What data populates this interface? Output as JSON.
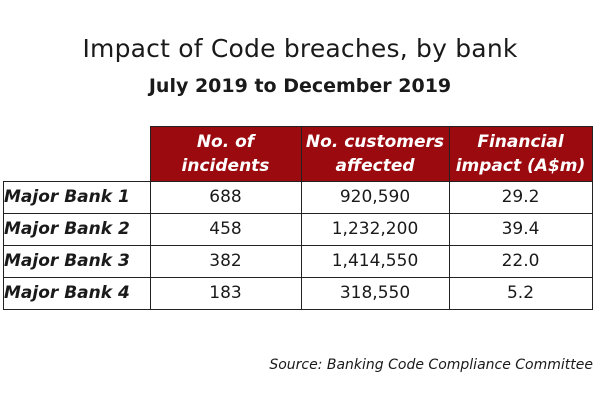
{
  "chart_data": {
    "type": "table",
    "title": "Impact of Code breaches, by bank",
    "subtitle": "July 2019 to December 2019",
    "columns": [
      {
        "line1": "No. of",
        "line2": "incidents"
      },
      {
        "line1": "No. customers",
        "line2": "affected"
      },
      {
        "line1": "Financial",
        "line2": "impact (A$m)"
      }
    ],
    "rows": [
      {
        "label": "Major Bank 1",
        "incidents": "688",
        "customers": "920,590",
        "impact": "29.2"
      },
      {
        "label": "Major Bank 2",
        "incidents": "458",
        "customers": "1,232,200",
        "impact": "39.4"
      },
      {
        "label": "Major Bank 3",
        "incidents": "382",
        "customers": "1,414,550",
        "impact": "22.0"
      },
      {
        "label": "Major Bank 4",
        "incidents": "183",
        "customers": "318,550",
        "impact": "5.2"
      }
    ],
    "source": "Source: Banking Code Compliance Committee",
    "header_color": "#9b0a0f"
  }
}
